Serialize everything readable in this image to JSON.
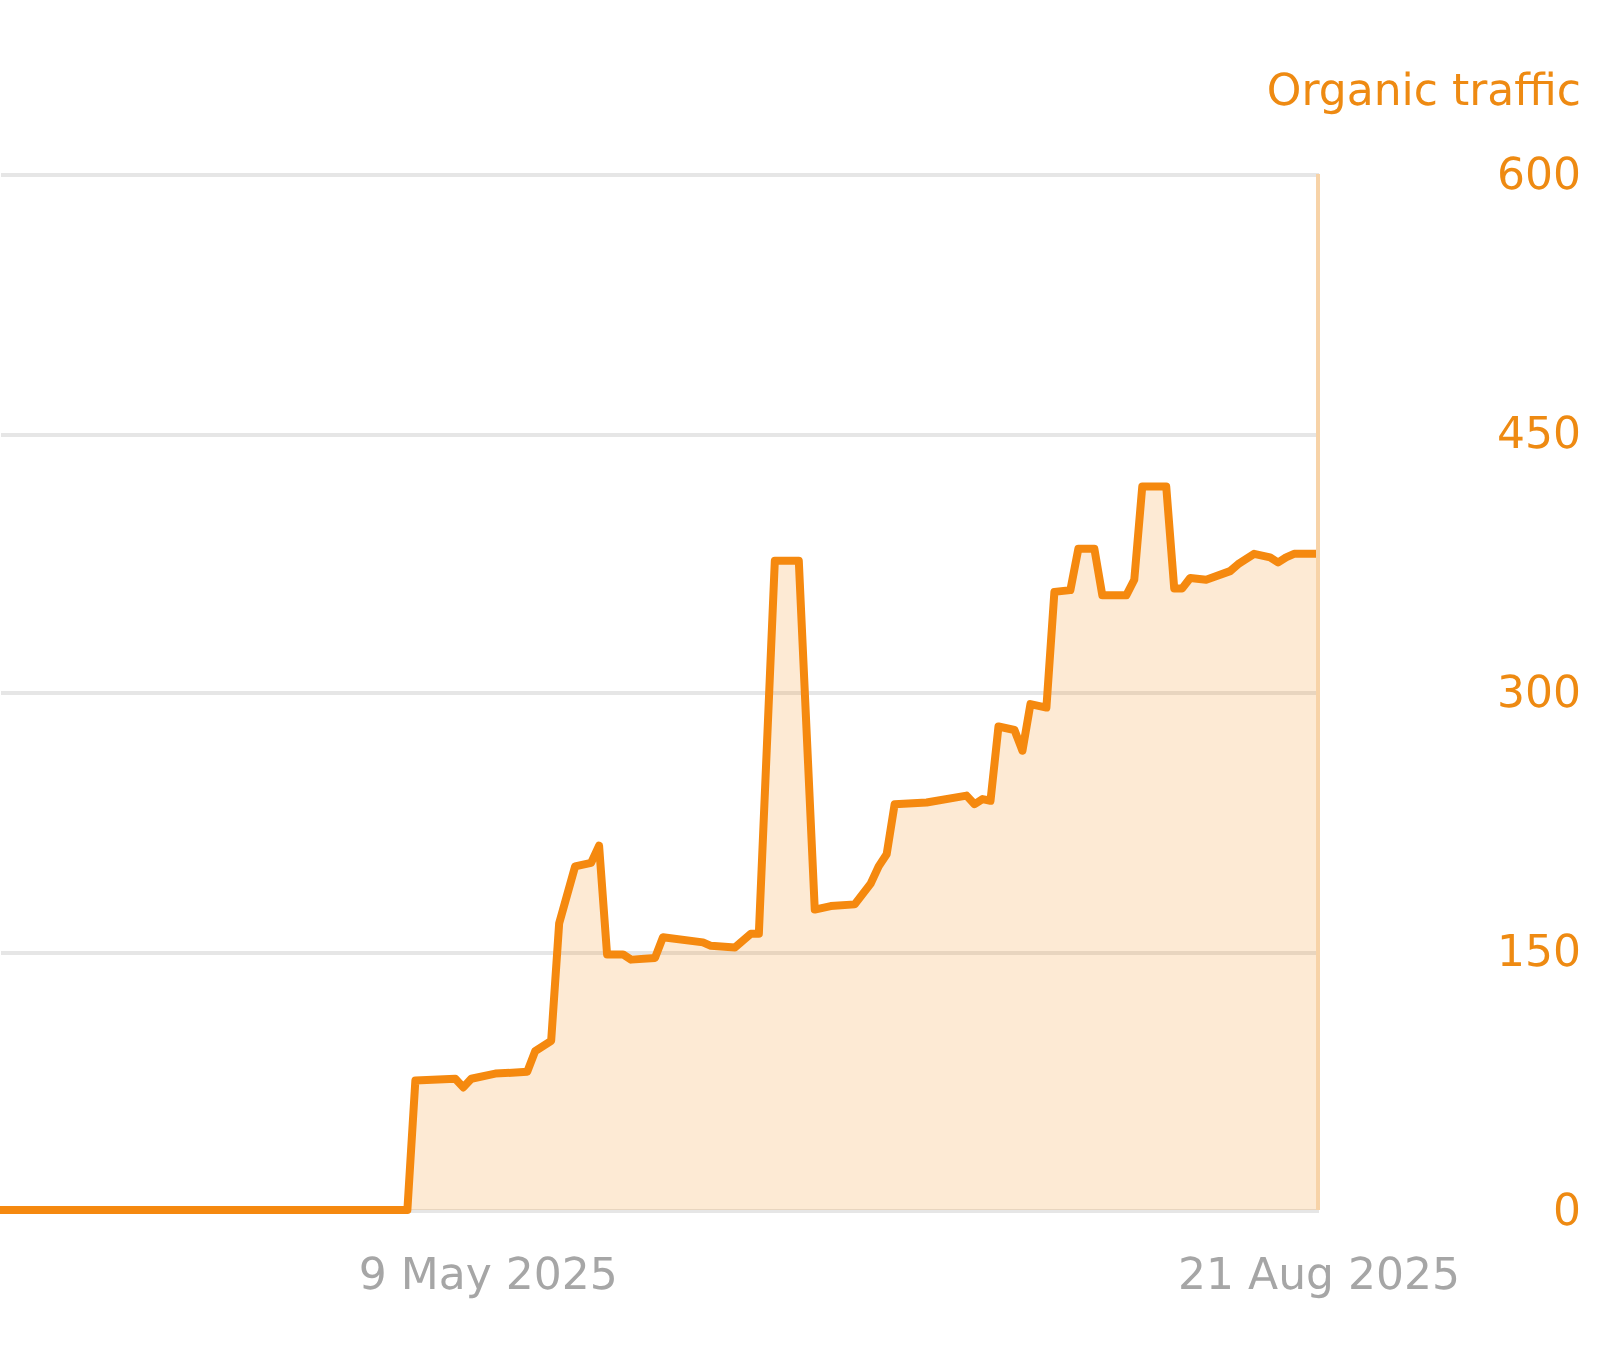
{
  "chart_data": {
    "type": "area",
    "ylabel": "Organic traffic",
    "x": [
      "2025-03-09",
      "2025-04-29",
      "2025-04-30",
      "2025-05-05",
      "2025-05-06",
      "2025-05-07",
      "2025-05-10",
      "2025-05-14",
      "2025-05-15",
      "2025-05-17",
      "2025-05-18",
      "2025-05-20",
      "2025-05-22",
      "2025-05-23",
      "2025-05-24",
      "2025-05-26",
      "2025-05-27",
      "2025-05-30",
      "2025-05-31",
      "2025-06-05",
      "2025-06-06",
      "2025-06-09",
      "2025-06-11",
      "2025-06-12",
      "2025-06-14",
      "2025-06-17",
      "2025-06-19",
      "2025-06-21",
      "2025-06-24",
      "2025-06-26",
      "2025-06-27",
      "2025-06-28",
      "2025-06-29",
      "2025-07-03",
      "2025-07-08",
      "2025-07-09",
      "2025-07-10",
      "2025-07-11",
      "2025-07-12",
      "2025-07-14",
      "2025-07-15",
      "2025-07-16",
      "2025-07-18",
      "2025-07-19",
      "2025-07-21",
      "2025-07-22",
      "2025-07-24",
      "2025-07-25",
      "2025-07-28",
      "2025-07-29",
      "2025-07-30",
      "2025-08-02",
      "2025-08-03",
      "2025-08-04",
      "2025-08-05",
      "2025-08-07",
      "2025-08-10",
      "2025-08-11",
      "2025-08-13",
      "2025-08-15",
      "2025-08-16",
      "2025-08-17",
      "2025-08-18",
      "2025-08-21"
    ],
    "series": [
      {
        "color": "#f5890f",
        "values": [
          0,
          0,
          75,
          76,
          71,
          76,
          79,
          80,
          92,
          98,
          166,
          199,
          201,
          211,
          148,
          148,
          145,
          146,
          158,
          155,
          153,
          152,
          160,
          160,
          376,
          376,
          174,
          176,
          177,
          189,
          199,
          206,
          235,
          236,
          240,
          235,
          238,
          237,
          280,
          278,
          266,
          293,
          291,
          358,
          359,
          383,
          383,
          356,
          356,
          365,
          419,
          419,
          360,
          360,
          366,
          365,
          370,
          374,
          380,
          378,
          375,
          378,
          380,
          380
        ]
      }
    ],
    "xlim": [
      "2025-03-09",
      "2025-08-21"
    ],
    "xticks": [
      {
        "value": "2025-05-09",
        "label": "9 May 2025"
      },
      {
        "value": "2025-08-21",
        "label": "21 Aug 2025"
      }
    ],
    "ylim": [
      0,
      600
    ],
    "yticks": [
      0,
      150,
      300,
      450,
      600
    ],
    "grid": "y",
    "ref_lines": [
      {
        "axis": "x",
        "value": "2025-08-21",
        "color": "#f7d3a8"
      }
    ]
  }
}
